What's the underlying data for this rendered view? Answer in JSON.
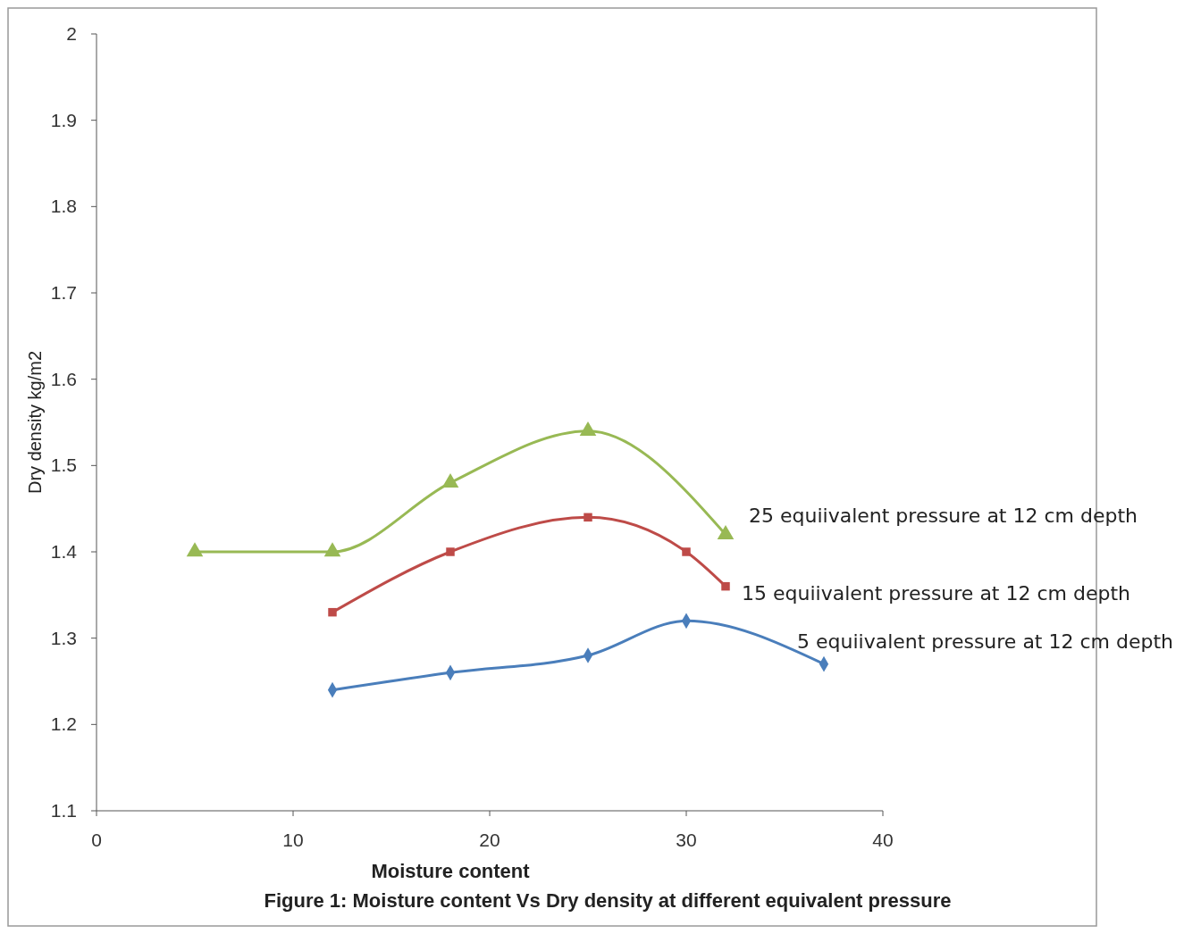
{
  "chart_data": {
    "type": "line",
    "title": "Figure 1: Moisture content Vs Dry density at different equivalent pressure",
    "xlabel": "Moisture content",
    "ylabel": "Dry density kg/m2",
    "xlim": [
      0,
      40
    ],
    "xticks": [
      0,
      10,
      20,
      30,
      40
    ],
    "ylim": [
      1.1,
      2
    ],
    "yticks": [
      1.1,
      1.2,
      1.3,
      1.4,
      1.5,
      1.6,
      1.7,
      1.8,
      1.9,
      2
    ],
    "grid": false,
    "series": [
      {
        "name": "5 equiivalent pressure at 12 cm depth",
        "color": "#4a7ebb",
        "marker": "diamond",
        "x": [
          12,
          18,
          25,
          30,
          37
        ],
        "values": [
          1.24,
          1.26,
          1.28,
          1.32,
          1.27
        ]
      },
      {
        "name": "15 equiivalent pressure at 12 cm depth",
        "color": "#be4b48",
        "marker": "square",
        "x": [
          12,
          18,
          25,
          30,
          32
        ],
        "values": [
          1.33,
          1.4,
          1.44,
          1.4,
          1.36
        ]
      },
      {
        "name": "25 equiivalent pressure at 12 cm depth",
        "color": "#98b954",
        "marker": "triangle",
        "x": [
          5,
          12,
          18,
          25,
          32
        ],
        "values": [
          1.4,
          1.4,
          1.48,
          1.54,
          1.42
        ]
      }
    ]
  }
}
